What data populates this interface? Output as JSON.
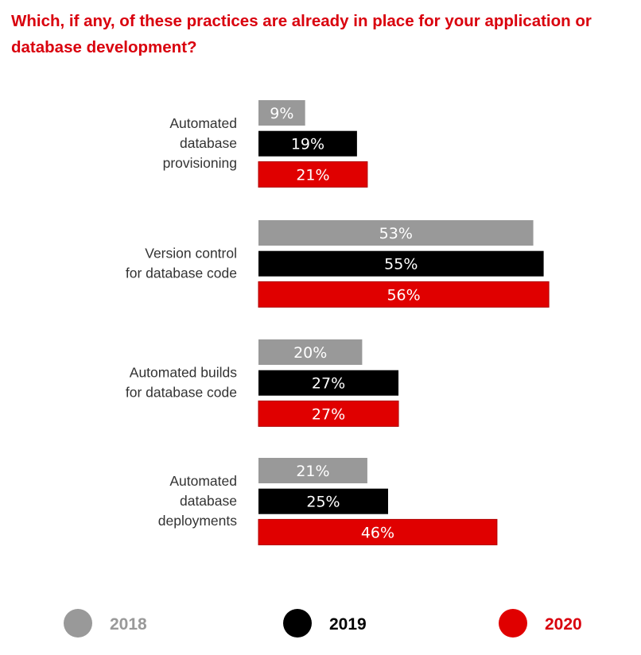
{
  "chart_data": {
    "type": "bar",
    "orientation": "horizontal",
    "title": "Which, if any, of these practices are already in place for your application or database development?",
    "categories": [
      [
        "Automated",
        "database",
        "provisioning"
      ],
      [
        "Version control",
        "for database code"
      ],
      [
        "Automated builds",
        "for database code"
      ],
      [
        "Automated",
        "database",
        "deployments"
      ]
    ],
    "series": [
      {
        "name": "2018",
        "color": "#999999",
        "legend_text_color": "#999999",
        "values": [
          9,
          53,
          20,
          21
        ]
      },
      {
        "name": "2019",
        "color": "#000000",
        "legend_text_color": "#000000",
        "values": [
          19,
          55,
          27,
          25
        ]
      },
      {
        "name": "2020",
        "color": "#e00000",
        "legend_text_color": "#d9000d",
        "values": [
          21,
          56,
          27,
          46
        ]
      }
    ],
    "value_suffix": "%",
    "xlim": [
      0,
      56
    ],
    "legend": "bottom"
  }
}
